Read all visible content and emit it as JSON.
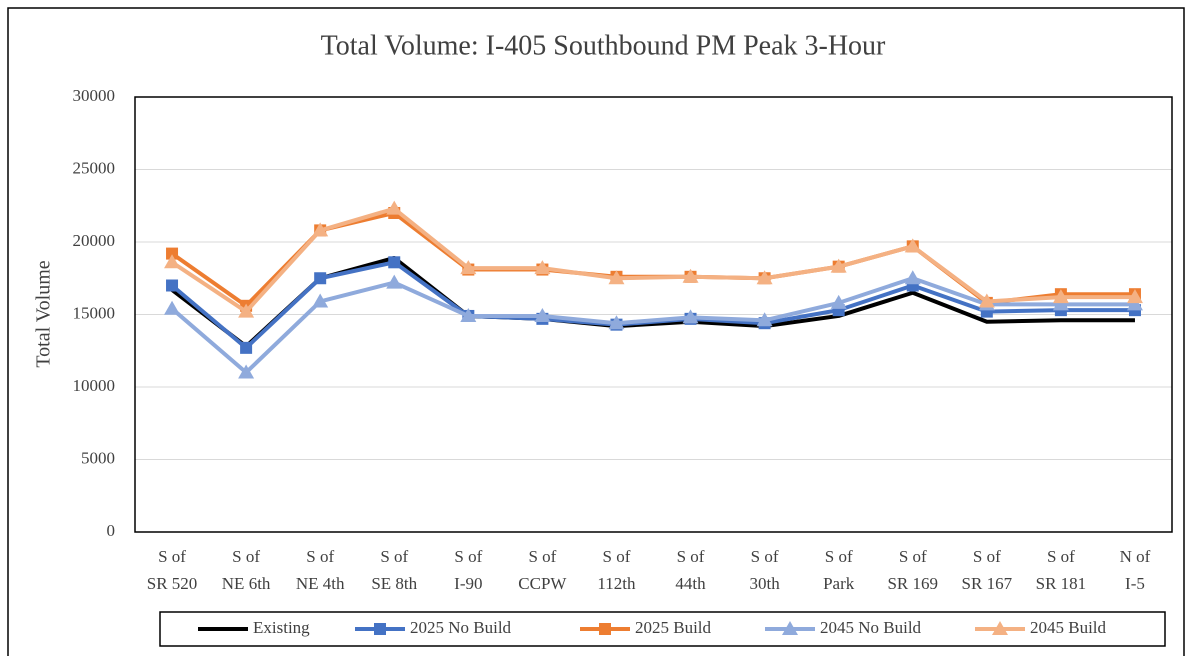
{
  "chart_data": {
    "type": "line",
    "title": "Total Volume: I-405 Southbound PM Peak 3-Hour",
    "y_label": "Total Volume",
    "categories": [
      [
        "S of",
        "SR 520"
      ],
      [
        "S of",
        "NE 6th"
      ],
      [
        "S of",
        "NE 4th"
      ],
      [
        "S of",
        "SE 8th"
      ],
      [
        "S of",
        "I-90"
      ],
      [
        "S of",
        "CCPW"
      ],
      [
        "S of",
        "112th"
      ],
      [
        "S of",
        "44th"
      ],
      [
        "S of",
        "30th"
      ],
      [
        "S of",
        "Park"
      ],
      [
        "S of",
        "SR 169"
      ],
      [
        "S of",
        "SR 167"
      ],
      [
        "S of",
        "SR 181"
      ],
      [
        "N of",
        "I-5"
      ]
    ],
    "series": [
      {
        "name": "Existing",
        "color": "#000000",
        "marker": "none",
        "values": [
          16700,
          12800,
          17500,
          18900,
          14900,
          14700,
          14200,
          14500,
          14200,
          14900,
          16500,
          14500,
          14600,
          14600
        ]
      },
      {
        "name": "2025 No Build",
        "color": "#4472c4",
        "marker": "square",
        "values": [
          17000,
          12700,
          17500,
          18600,
          14900,
          14700,
          14300,
          14700,
          14400,
          15300,
          17000,
          15200,
          15300,
          15300
        ]
      },
      {
        "name": "2025 Build",
        "color": "#ed7d31",
        "marker": "square",
        "values": [
          19200,
          15600,
          20800,
          22000,
          18100,
          18100,
          17600,
          17600,
          17500,
          18300,
          19700,
          15800,
          16400,
          16400
        ]
      },
      {
        "name": "2045 No Build",
        "color": "#8faadc",
        "marker": "triangle",
        "values": [
          15400,
          11000,
          15900,
          17200,
          14900,
          14900,
          14400,
          14800,
          14600,
          15800,
          17500,
          15700,
          15700,
          15700
        ]
      },
      {
        "name": "2045 Build",
        "color": "#f4b183",
        "marker": "triangle",
        "values": [
          18600,
          15200,
          20800,
          22300,
          18200,
          18200,
          17500,
          17600,
          17500,
          18300,
          19700,
          15900,
          16200,
          16200
        ]
      }
    ],
    "ylim": [
      0,
      30000
    ],
    "yticks": [
      0,
      5000,
      10000,
      15000,
      20000,
      25000,
      30000
    ],
    "grid": true,
    "legend": "bottom"
  }
}
